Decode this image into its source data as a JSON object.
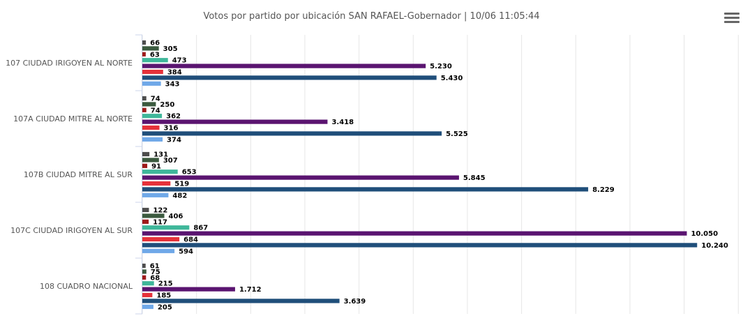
{
  "header": {
    "title": "Votos por partido por ubicación SAN RAFAEL-Gobernador | 10/06 11:05:44",
    "menu_icon": "hamburger-menu-icon"
  },
  "chart_data": {
    "type": "bar",
    "orientation": "horizontal",
    "title": "Votos por partido por ubicación SAN RAFAEL-Gobernador | 10/06 11:05:44",
    "categories": [
      "107 CIUDAD IRIGOYEN AL NORTE",
      "107A CIUDAD MITRE AL NORTE",
      "107B CIUDAD MITRE AL SUR",
      "107C CIUDAD IRIGOYEN AL SUR",
      "108 CUADRO NACIONAL"
    ],
    "series": [
      {
        "color": "#4d4d4d",
        "values": [
          66,
          74,
          131,
          122,
          61
        ],
        "labels": [
          "66",
          "74",
          "131",
          "122",
          "61"
        ]
      },
      {
        "color": "#3b5a3f",
        "values": [
          305,
          250,
          307,
          406,
          75
        ],
        "labels": [
          "305",
          "250",
          "307",
          "406",
          "75"
        ]
      },
      {
        "color": "#9e1a1a",
        "values": [
          63,
          74,
          91,
          117,
          68
        ],
        "labels": [
          "63",
          "74",
          "91",
          "117",
          "68"
        ]
      },
      {
        "color": "#3fb79a",
        "values": [
          473,
          362,
          653,
          867,
          215
        ],
        "labels": [
          "473",
          "362",
          "653",
          "867",
          "215"
        ]
      },
      {
        "color": "#5a1470",
        "values": [
          5230,
          3418,
          5845,
          10050,
          1712
        ],
        "labels": [
          "5.230",
          "3.418",
          "5.845",
          "10.050",
          "1.712"
        ]
      },
      {
        "color": "#e5323a",
        "values": [
          384,
          316,
          519,
          684,
          185
        ],
        "labels": [
          "384",
          "316",
          "519",
          "684",
          "185"
        ]
      },
      {
        "color": "#1f4e7a",
        "values": [
          5430,
          5525,
          8229,
          10240,
          3639
        ],
        "labels": [
          "5.430",
          "5.525",
          "8.229",
          "10.240",
          "3.639"
        ]
      },
      {
        "color": "#6fa8e8",
        "values": [
          343,
          374,
          482,
          594,
          205
        ],
        "labels": [
          "343",
          "374",
          "482",
          "594",
          "205"
        ]
      }
    ],
    "xlim": [
      0,
      11000
    ],
    "grid": true,
    "legend": "none"
  }
}
